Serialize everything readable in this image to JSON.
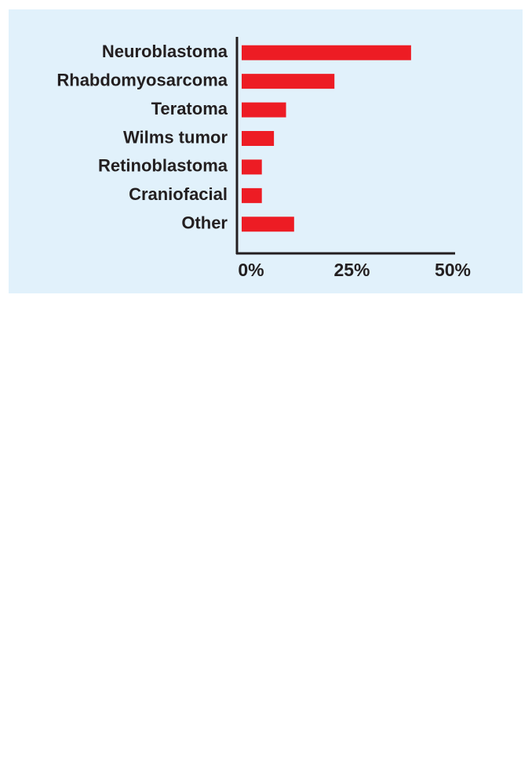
{
  "chart_data": {
    "type": "hbar",
    "categories": [
      "Neuroblastoma",
      "Rhabdomyosarcoma",
      "Teratoma",
      "Wilms tumor",
      "Retinoblastoma",
      "Craniofacial",
      "Other"
    ],
    "values": [
      42,
      23,
      11,
      8,
      5,
      5,
      13
    ],
    "color": "#ed1c24",
    "xlim": [
      0,
      50
    ],
    "xticks": [
      {
        "value": 0,
        "label": "0%"
      },
      {
        "value": 25,
        "label": "25%"
      },
      {
        "value": 50,
        "label": "50%"
      }
    ],
    "grid": false
  }
}
